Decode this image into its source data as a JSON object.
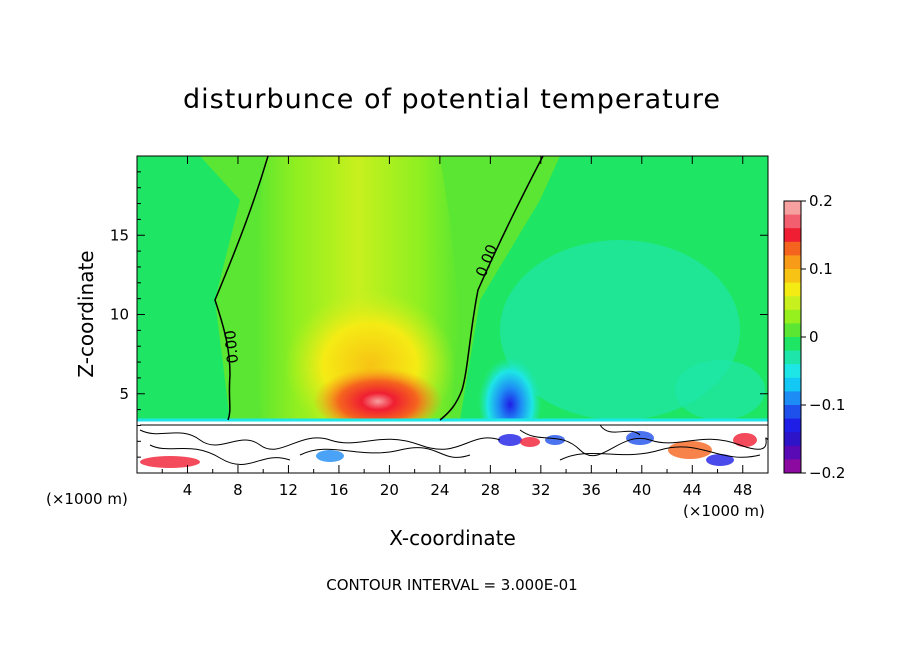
{
  "chart_data": {
    "type": "heatmap",
    "title": "disturbunce of potential temperature",
    "xlabel": "X-coordinate",
    "ylabel": "Z-coordinate",
    "x_unit": "(×1000 m)",
    "y_unit": "(×1000 m)",
    "xlim": [
      0,
      50
    ],
    "ylim": [
      0,
      20
    ],
    "x_ticks": [
      4,
      8,
      12,
      16,
      20,
      24,
      28,
      32,
      36,
      40,
      44,
      48
    ],
    "y_ticks": [
      5,
      10,
      15
    ],
    "contour_interval_text": "CONTOUR INTERVAL = 3.000E-01",
    "contour_labels": [
      "0.00",
      "0.00"
    ],
    "colorbar": {
      "min": -0.2,
      "max": 0.2,
      "tick_labels": [
        "0.2",
        "0.1",
        "0",
        "−0.1",
        "−0.2"
      ],
      "tick_values": [
        0.2,
        0.1,
        0,
        -0.1,
        -0.2
      ],
      "levels": [
        {
          "value": 0.19,
          "color": "#f7a0a0"
        },
        {
          "value": 0.17,
          "color": "#f25f6e"
        },
        {
          "value": 0.15,
          "color": "#f01e32"
        },
        {
          "value": 0.13,
          "color": "#f5641e"
        },
        {
          "value": 0.11,
          "color": "#f79b19"
        },
        {
          "value": 0.09,
          "color": "#f7c314"
        },
        {
          "value": 0.07,
          "color": "#f5eb14"
        },
        {
          "value": 0.05,
          "color": "#c8f01e"
        },
        {
          "value": 0.03,
          "color": "#96f01e"
        },
        {
          "value": 0.01,
          "color": "#5ae632"
        },
        {
          "value": -0.01,
          "color": "#1ee664"
        },
        {
          "value": -0.03,
          "color": "#1ee6aa"
        },
        {
          "value": -0.05,
          "color": "#1ee6e6"
        },
        {
          "value": -0.07,
          "color": "#14c8f5"
        },
        {
          "value": -0.09,
          "color": "#1e8cf5"
        },
        {
          "value": -0.11,
          "color": "#1e50eb"
        },
        {
          "value": -0.13,
          "color": "#1e1ee6"
        },
        {
          "value": -0.15,
          "color": "#2d14c8"
        },
        {
          "value": -0.17,
          "color": "#5a0ab4"
        },
        {
          "value": -0.19,
          "color": "#8c0aa0"
        }
      ]
    }
  }
}
